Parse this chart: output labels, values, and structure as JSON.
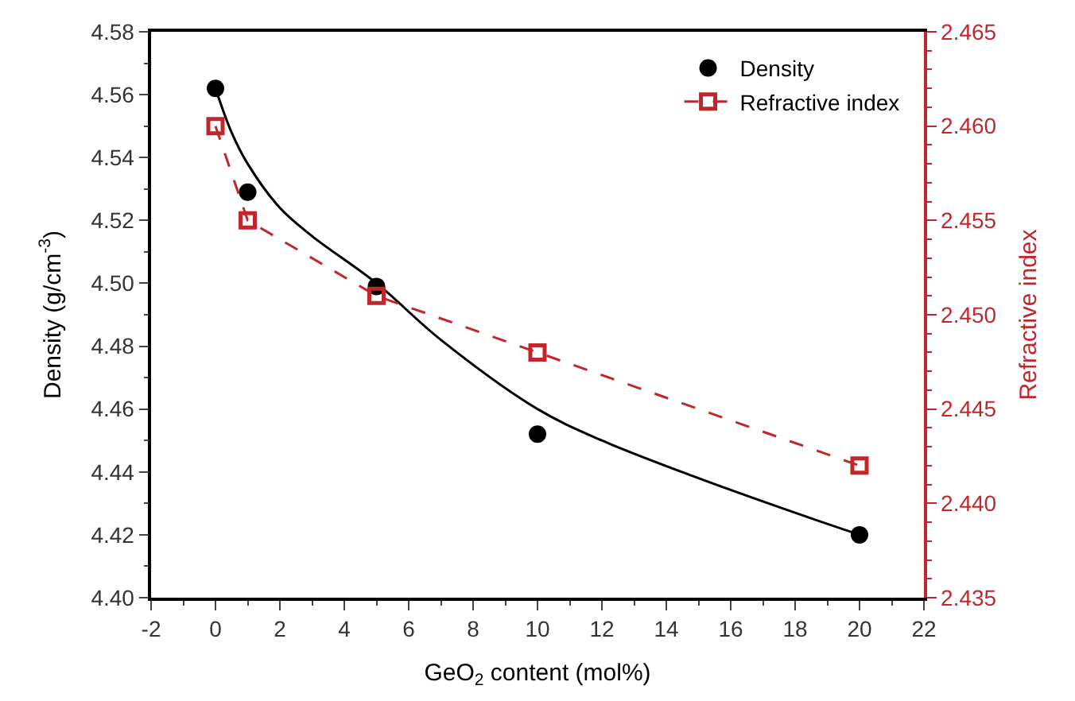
{
  "chart_data": {
    "type": "scatter",
    "xlabel": "GeO$_{2}$ content (mol%)",
    "ylabel": "Density (g/cm$^{-3}$)",
    "y2label": "Refractive index",
    "xlim": [
      -2,
      22
    ],
    "xticks": [
      -2,
      0,
      2,
      4,
      6,
      8,
      10,
      12,
      14,
      16,
      18,
      20,
      22
    ],
    "ylim": [
      4.4,
      4.58
    ],
    "yticks": [
      {
        "value": 4.4,
        "label": "4.40"
      },
      4.42,
      4.44,
      4.46,
      4.48,
      {
        "value": 4.5,
        "label": "4.50"
      },
      4.52,
      4.54,
      4.56,
      4.58
    ],
    "y2lim": [
      2.435,
      2.465
    ],
    "y2ticks": [
      2.435,
      {
        "value": 2.44,
        "label": "2.440"
      },
      2.445,
      {
        "value": 2.45,
        "label": "2.450"
      },
      2.455,
      {
        "value": 2.46,
        "label": "2.460"
      },
      2.465
    ],
    "legend": "top right",
    "series": [
      {
        "name": "Density",
        "marker": "circle",
        "color": "#000000",
        "x": [
          0,
          1,
          5,
          10,
          20
        ],
        "values": [
          4.562,
          4.529,
          4.499,
          4.452,
          4.42
        ]
      },
      {
        "type": "line",
        "marker": "none",
        "line_style": "solid",
        "color": "#000000",
        "x": [
          0,
          0.5,
          1,
          2,
          3,
          5,
          7,
          10,
          12,
          15,
          18,
          20
        ],
        "values": [
          4.562,
          4.548,
          4.538,
          4.524,
          4.515,
          4.5,
          4.482,
          4.46,
          4.45,
          4.438,
          4.427,
          4.42
        ]
      },
      {
        "name": "Refractive index",
        "type": "line",
        "marker": "square",
        "line_style": "dashed",
        "axis": "y2",
        "color": "#c0272d",
        "x": [
          0,
          1,
          5,
          10,
          20
        ],
        "values": [
          2.46,
          2.455,
          2.451,
          2.448,
          2.442
        ]
      }
    ]
  }
}
